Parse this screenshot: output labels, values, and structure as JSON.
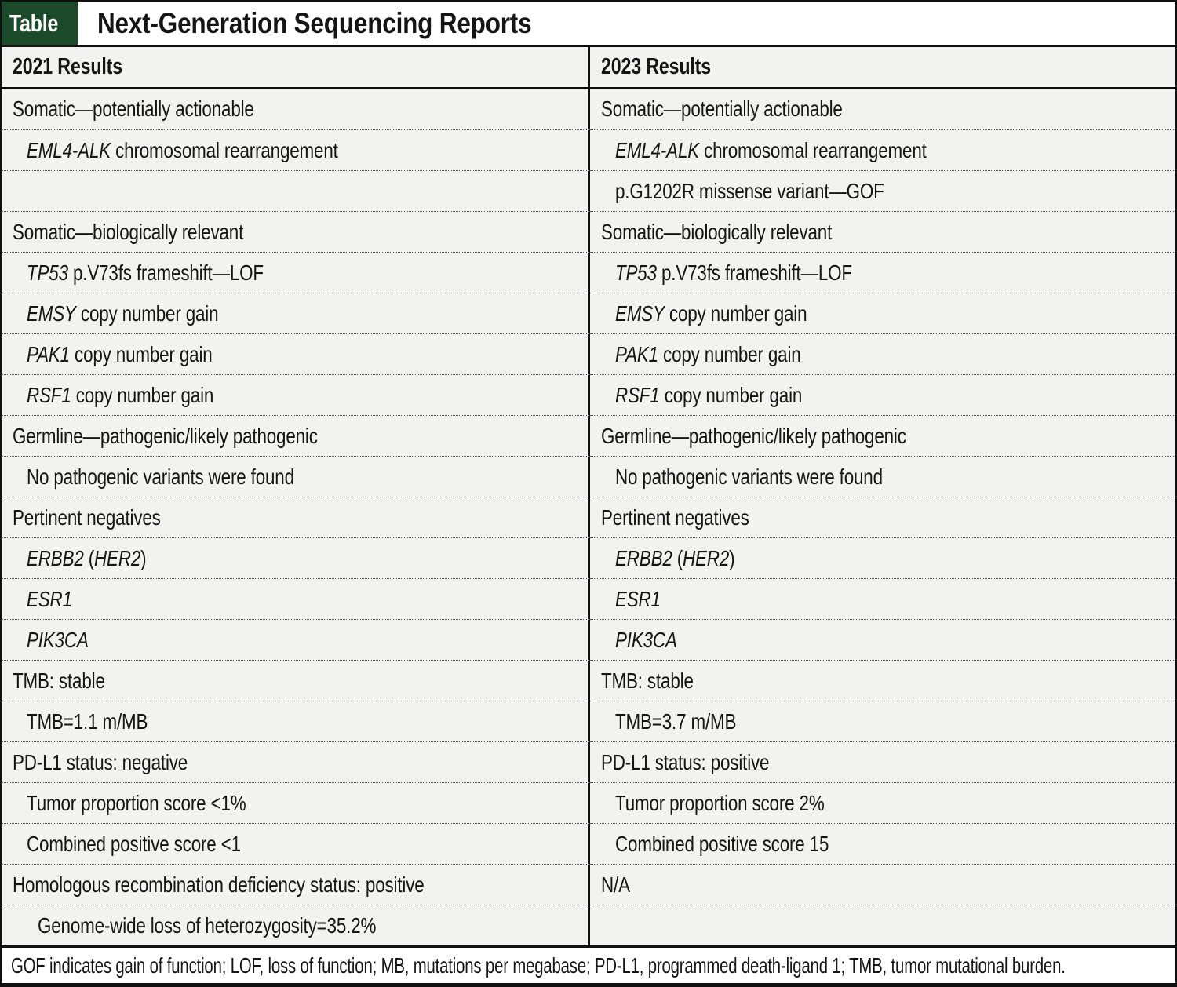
{
  "header": {
    "badge": "Table",
    "title": "Next-Generation Sequencing Reports"
  },
  "columns": [
    "2021 Results",
    "2023 Results"
  ],
  "rows": [
    {
      "left": {
        "indent": 0,
        "segments": [
          {
            "t": "Somatic—potentially actionable"
          }
        ]
      },
      "right": {
        "indent": 0,
        "segments": [
          {
            "t": "Somatic—potentially actionable"
          }
        ]
      }
    },
    {
      "left": {
        "indent": 1,
        "segments": [
          {
            "t": "EML4-ALK",
            "i": true
          },
          {
            "t": " chromosomal rearrangement"
          }
        ]
      },
      "right": {
        "indent": 1,
        "segments": [
          {
            "t": "EML4-ALK",
            "i": true
          },
          {
            "t": " chromosomal rearrangement"
          }
        ]
      }
    },
    {
      "left": {
        "indent": 1,
        "segments": []
      },
      "right": {
        "indent": 1,
        "segments": [
          {
            "t": "p.G1202R missense variant—GOF"
          }
        ]
      }
    },
    {
      "left": {
        "indent": 0,
        "segments": [
          {
            "t": "Somatic—biologically relevant"
          }
        ]
      },
      "right": {
        "indent": 0,
        "segments": [
          {
            "t": "Somatic—biologically relevant"
          }
        ]
      }
    },
    {
      "left": {
        "indent": 1,
        "segments": [
          {
            "t": "TP53",
            "i": true
          },
          {
            "t": " p.V73fs frameshift—LOF"
          }
        ]
      },
      "right": {
        "indent": 1,
        "segments": [
          {
            "t": "TP53",
            "i": true
          },
          {
            "t": " p.V73fs frameshift—LOF"
          }
        ]
      }
    },
    {
      "left": {
        "indent": 1,
        "segments": [
          {
            "t": "EMSY",
            "i": true
          },
          {
            "t": " copy number gain"
          }
        ]
      },
      "right": {
        "indent": 1,
        "segments": [
          {
            "t": "EMSY",
            "i": true
          },
          {
            "t": " copy number gain"
          }
        ]
      }
    },
    {
      "left": {
        "indent": 1,
        "segments": [
          {
            "t": "PAK1",
            "i": true
          },
          {
            "t": " copy number gain"
          }
        ]
      },
      "right": {
        "indent": 1,
        "segments": [
          {
            "t": "PAK1",
            "i": true
          },
          {
            "t": " copy number gain"
          }
        ]
      }
    },
    {
      "left": {
        "indent": 1,
        "segments": [
          {
            "t": "RSF1",
            "i": true
          },
          {
            "t": " copy number gain"
          }
        ]
      },
      "right": {
        "indent": 1,
        "segments": [
          {
            "t": "RSF1",
            "i": true
          },
          {
            "t": " copy number gain"
          }
        ]
      }
    },
    {
      "left": {
        "indent": 0,
        "segments": [
          {
            "t": "Germline—pathogenic/likely pathogenic"
          }
        ]
      },
      "right": {
        "indent": 0,
        "segments": [
          {
            "t": "Germline—pathogenic/likely pathogenic"
          }
        ]
      }
    },
    {
      "left": {
        "indent": 1,
        "segments": [
          {
            "t": "No pathogenic variants were found"
          }
        ]
      },
      "right": {
        "indent": 1,
        "segments": [
          {
            "t": "No pathogenic variants were found"
          }
        ]
      }
    },
    {
      "left": {
        "indent": 0,
        "segments": [
          {
            "t": "Pertinent negatives"
          }
        ]
      },
      "right": {
        "indent": 0,
        "segments": [
          {
            "t": "Pertinent negatives"
          }
        ]
      }
    },
    {
      "left": {
        "indent": 1,
        "segments": [
          {
            "t": "ERBB2",
            "i": true
          },
          {
            "t": " ("
          },
          {
            "t": "HER2",
            "i": true
          },
          {
            "t": ")"
          }
        ]
      },
      "right": {
        "indent": 1,
        "segments": [
          {
            "t": "ERBB2",
            "i": true
          },
          {
            "t": " ("
          },
          {
            "t": "HER2",
            "i": true
          },
          {
            "t": ")"
          }
        ]
      }
    },
    {
      "left": {
        "indent": 1,
        "segments": [
          {
            "t": "ESR1",
            "i": true
          }
        ]
      },
      "right": {
        "indent": 1,
        "segments": [
          {
            "t": "ESR1",
            "i": true
          }
        ]
      }
    },
    {
      "left": {
        "indent": 1,
        "segments": [
          {
            "t": "PIK3CA",
            "i": true
          }
        ]
      },
      "right": {
        "indent": 1,
        "segments": [
          {
            "t": "PIK3CA",
            "i": true
          }
        ]
      }
    },
    {
      "left": {
        "indent": 0,
        "segments": [
          {
            "t": "TMB: stable"
          }
        ]
      },
      "right": {
        "indent": 0,
        "segments": [
          {
            "t": "TMB: stable"
          }
        ]
      }
    },
    {
      "left": {
        "indent": 1,
        "segments": [
          {
            "t": "TMB=1.1 m/MB"
          }
        ]
      },
      "right": {
        "indent": 1,
        "segments": [
          {
            "t": "TMB=3.7 m/MB"
          }
        ]
      }
    },
    {
      "left": {
        "indent": 0,
        "segments": [
          {
            "t": "PD-L1 status: negative"
          }
        ]
      },
      "right": {
        "indent": 0,
        "segments": [
          {
            "t": "PD-L1 status: positive"
          }
        ]
      }
    },
    {
      "left": {
        "indent": 1,
        "segments": [
          {
            "t": "Tumor proportion score <1%"
          }
        ]
      },
      "right": {
        "indent": 1,
        "segments": [
          {
            "t": "Tumor proportion score 2%"
          }
        ]
      }
    },
    {
      "left": {
        "indent": 1,
        "segments": [
          {
            "t": "Combined positive score <1"
          }
        ]
      },
      "right": {
        "indent": 1,
        "segments": [
          {
            "t": "Combined positive score 15"
          }
        ]
      }
    },
    {
      "left": {
        "indent": 0,
        "segments": [
          {
            "t": "Homologous recombination deficiency status: positive"
          }
        ]
      },
      "right": {
        "indent": 0,
        "segments": [
          {
            "t": "N/A"
          }
        ]
      }
    },
    {
      "left": {
        "indent": 2,
        "segments": [
          {
            "t": "Genome-wide loss of heterozygosity=35.2%"
          }
        ]
      },
      "right": {
        "indent": 2,
        "segments": []
      }
    }
  ],
  "footnote": "GOF indicates gain of function; LOF, loss of function; MB, mutations per megabase; PD-L1, programmed death-ligand 1; TMB, tumor mutational burden.",
  "colors": {
    "badge_green": "#1a4a29",
    "row_gray": "#f2f2f1",
    "border_black": "#101010"
  }
}
